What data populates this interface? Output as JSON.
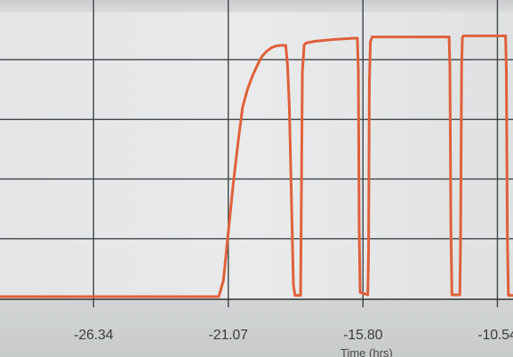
{
  "chart_data": {
    "type": "line",
    "xlabel": "Time (hrs)",
    "ylabel": "",
    "xlim": [
      -30.0,
      -9.93
    ],
    "ylim": [
      0,
      5
    ],
    "x_ticks": [
      -26.34,
      -21.07,
      -15.8,
      -10.54
    ],
    "x_tick_labels": [
      "-26.34",
      "-21.07",
      "-15.80",
      "-10.54"
    ],
    "grid": true,
    "legend": "none",
    "series": [
      {
        "color": "#e0603a",
        "x": [
          -30.0,
          -21.44,
          -21.26,
          -21.07,
          -20.88,
          -20.69,
          -20.51,
          -20.32,
          -20.13,
          -19.94,
          -19.76,
          -19.57,
          -19.38,
          -19.2,
          -19.01,
          -18.82,
          -18.75,
          -18.68,
          -18.52,
          -18.46,
          -18.35,
          -18.24,
          -18.17,
          -18.1,
          -18.02,
          -17.66,
          -16.9,
          -16.16,
          -16.02,
          -15.98,
          -15.95,
          -15.91,
          -15.61,
          -15.58,
          -15.55,
          -15.51,
          -15.44,
          -12.43,
          -12.4,
          -12.36,
          -12.32,
          -12.01,
          -11.98,
          -11.94,
          -11.91,
          -11.87,
          -10.22,
          -10.19,
          -10.15,
          -10.11,
          -9.93
        ],
        "y": [
          0.03,
          0.03,
          0.3,
          1.1,
          1.9,
          2.6,
          3.2,
          3.5,
          3.72,
          3.9,
          4.05,
          4.14,
          4.2,
          4.23,
          4.24,
          4.24,
          3.9,
          3.2,
          0.22,
          0.05,
          0.05,
          0.05,
          3.8,
          4.25,
          4.28,
          4.31,
          4.34,
          4.36,
          4.36,
          3.8,
          1.2,
          0.1,
          0.06,
          0.8,
          3.6,
          4.3,
          4.38,
          4.38,
          3.9,
          1.2,
          0.06,
          0.06,
          1.0,
          3.9,
          4.37,
          4.4,
          4.4,
          3.8,
          1.0,
          0.05,
          0.05
        ]
      }
    ]
  }
}
